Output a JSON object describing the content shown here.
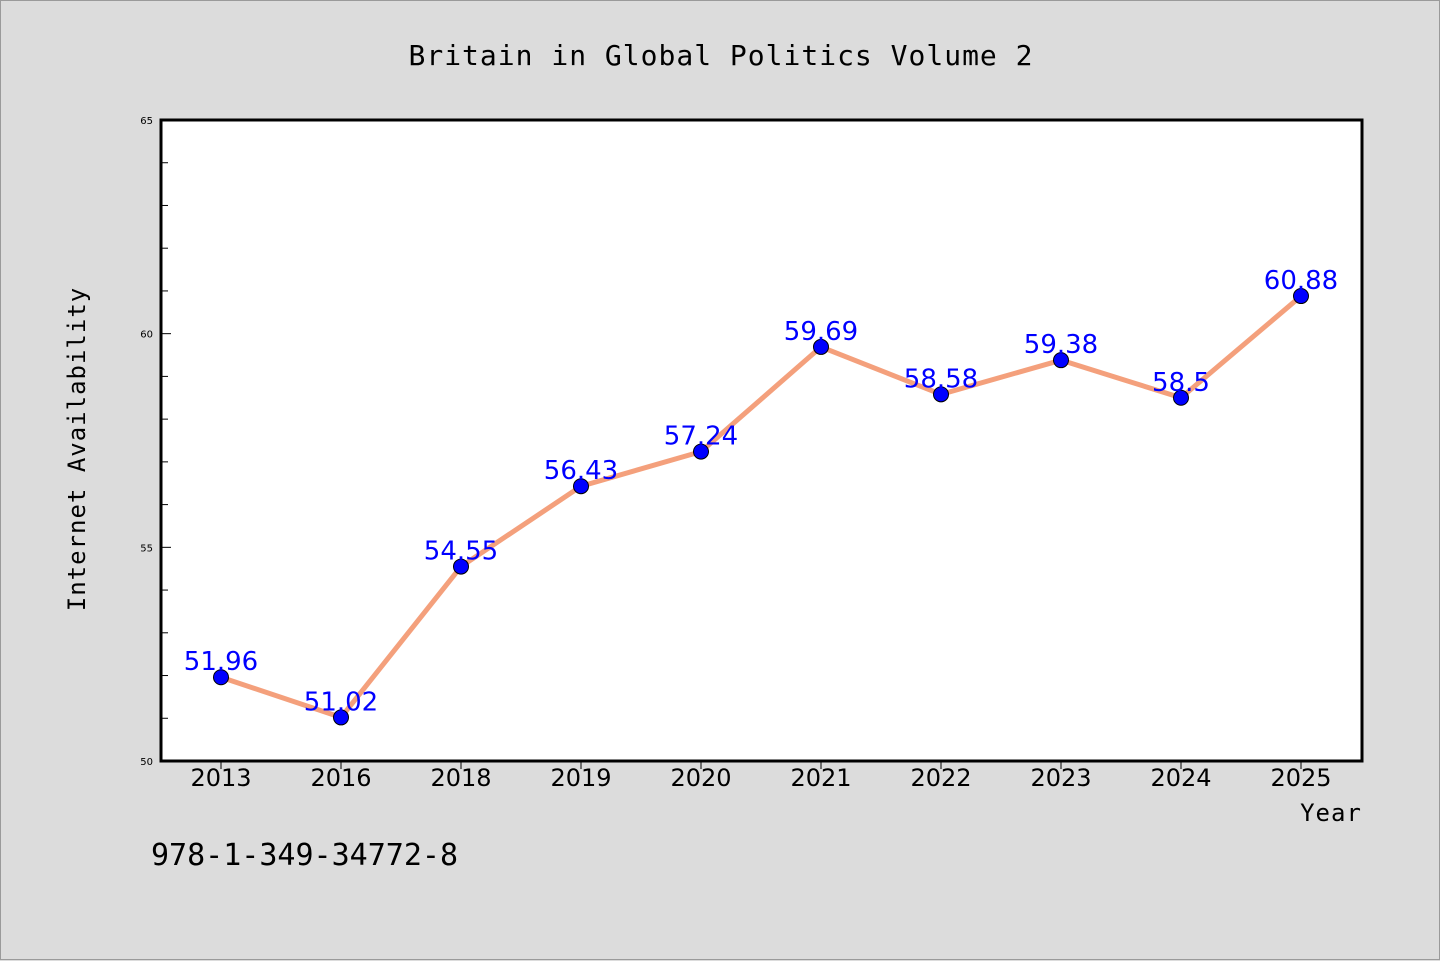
{
  "chart_data": {
    "type": "line",
    "title": "Britain in Global Politics Volume 2",
    "xlabel": "Year",
    "ylabel": "Internet Availability",
    "categories": [
      "2013",
      "2016",
      "2018",
      "2019",
      "2020",
      "2021",
      "2022",
      "2023",
      "2024",
      "2025"
    ],
    "series": [
      {
        "values": [
          51.96,
          51.02,
          54.55,
          56.43,
          57.24,
          59.69,
          58.58,
          59.38,
          58.5,
          60.88
        ],
        "labels": [
          "51.96",
          "51.02",
          "54.55",
          "56.43",
          "57.24",
          "59.69",
          "58.58",
          "59.38",
          "58.5",
          "60.88"
        ],
        "line_color": "#f4a07c",
        "marker_color": "#0000ff"
      }
    ],
    "ylim": [
      50,
      65
    ],
    "yticks": [
      50,
      55,
      60,
      65
    ],
    "ytick_labels": [
      "50",
      "55",
      "60",
      "65"
    ],
    "grid": false,
    "legend": "none"
  },
  "footer": {
    "isbn": "978-1-349-34772-8"
  },
  "colors": {
    "background": "#dcdcdc",
    "plot_background": "#ffffff",
    "line": "#f4a07c",
    "marker": "#0000ff",
    "data_label": "#0000ff"
  }
}
